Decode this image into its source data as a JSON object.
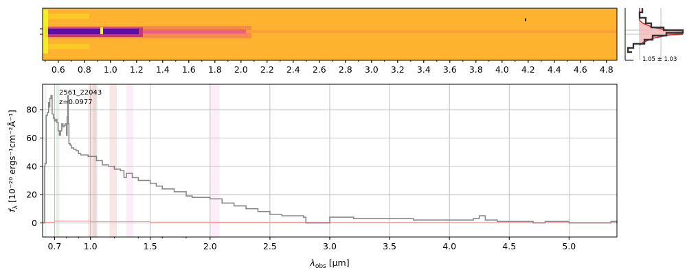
{
  "chart_data": [
    {
      "type": "heatmap",
      "name": "2d-spectrum",
      "x_tick_labels": [
        "0.6",
        "0.8",
        "1.0",
        "1.2",
        "1.4",
        "1.6",
        "1.8",
        "2.0",
        "2.2",
        "2.4",
        "2.6",
        "2.8",
        "3.0",
        "3.2",
        "3.4",
        "3.6",
        "3.8",
        "4.0",
        "4.2",
        "4.4",
        "4.6",
        "4.8"
      ],
      "x_tick_values": [
        0.6,
        0.8,
        1.0,
        1.2,
        1.4,
        1.6,
        1.8,
        2.0,
        2.2,
        2.4,
        2.6,
        2.8,
        3.0,
        3.2,
        3.4,
        3.6,
        3.8,
        4.0,
        4.2,
        4.4,
        4.6,
        4.8
      ],
      "xlim": [
        0.48,
        4.88
      ],
      "colormap": "plasma",
      "colors": {
        "background": "#fdb32f",
        "trace_core": "#5a0ea2",
        "trace_mid": "#c0397f",
        "edge_highlight": "#f0f921"
      }
    },
    {
      "type": "line",
      "name": "spatial-profile",
      "label": "1.05 ± 1.03",
      "colors": {
        "profile": "#333333",
        "model": "#d62728",
        "fill": "#f4b6b6"
      }
    },
    {
      "type": "line",
      "name": "1d-spectrum",
      "annotation_id": "2561_22043",
      "annotation_z": "z=0.0977",
      "xlabel_prefix": "λ",
      "xlabel_sub": "obs",
      "xlabel_suffix": " [μm]",
      "ylabel_f": "f",
      "ylabel_sub": "λ",
      "ylabel_rest": " [10⁻²⁰ ergs⁻¹cm⁻²Å⁻¹]",
      "x_tick_labels": [
        "0.7",
        "1.0",
        "1.5",
        "2.0",
        "2.5",
        "3.0",
        "3.5",
        "4.0",
        "4.5",
        "5.0"
      ],
      "x_tick_values": [
        0.7,
        1.0,
        1.5,
        2.0,
        2.5,
        3.0,
        3.5,
        4.0,
        4.5,
        5.0
      ],
      "y_tick_labels": [
        "0",
        "20",
        "40",
        "60",
        "80"
      ],
      "y_tick_values": [
        0,
        20,
        40,
        60,
        80
      ],
      "xlim": [
        0.6,
        5.4
      ],
      "ylim": [
        -10,
        98
      ],
      "grid": true,
      "bands": [
        {
          "x0": 0.62,
          "x1": 0.63,
          "color": "#2ca02c"
        },
        {
          "x0": 0.71,
          "x1": 0.74,
          "color": "#2ca02c"
        },
        {
          "x0": 0.98,
          "x1": 1.05,
          "color": "#d62728"
        },
        {
          "x0": 1.02,
          "x1": 1.06,
          "color": "#7f7f7f"
        },
        {
          "x0": 1.16,
          "x1": 1.22,
          "color": "#d62728"
        },
        {
          "x0": 1.3,
          "x1": 1.36,
          "color": "#e377c2"
        },
        {
          "x0": 2.0,
          "x1": 2.08,
          "color": "#e377c2"
        }
      ],
      "series": [
        {
          "color": "#888888",
          "x": [
            0.6,
            0.61,
            0.615,
            0.62,
            0.63,
            0.64,
            0.65,
            0.655,
            0.66,
            0.67,
            0.68,
            0.69,
            0.7,
            0.71,
            0.72,
            0.73,
            0.74,
            0.75,
            0.76,
            0.77,
            0.78,
            0.79,
            0.8,
            0.805,
            0.81,
            0.815,
            0.82,
            0.83,
            0.84,
            0.86,
            0.88,
            0.9,
            0.92,
            0.95,
            0.98,
            1.0,
            1.05,
            1.1,
            1.15,
            1.2,
            1.25,
            1.28,
            1.3,
            1.35,
            1.4,
            1.5,
            1.55,
            1.6,
            1.7,
            1.8,
            1.85,
            1.9,
            2.0,
            2.1,
            2.2,
            2.3,
            2.4,
            2.5,
            2.6,
            2.7,
            2.78,
            2.8,
            3.0,
            3.1,
            3.2,
            3.3,
            3.4,
            3.5,
            3.6,
            3.7,
            3.8,
            3.9,
            4.0,
            4.1,
            4.2,
            4.25,
            4.3,
            4.4,
            4.5,
            4.6,
            4.7,
            4.8,
            5.0,
            5.2,
            5.3,
            5.35,
            5.4
          ],
          "y": [
            0,
            0,
            40,
            42,
            76,
            78,
            85,
            82,
            88,
            90,
            77,
            74,
            72,
            73,
            71,
            65,
            62,
            65,
            70,
            68,
            69,
            70,
            62,
            75,
            90,
            70,
            56,
            55,
            53,
            52,
            51,
            49,
            48,
            48,
            47,
            47,
            44,
            41,
            40,
            38,
            37,
            32,
            35,
            32,
            30,
            28,
            26,
            24,
            22,
            19,
            18,
            18,
            17,
            14,
            12,
            10,
            8,
            6,
            5,
            5,
            4,
            0,
            4,
            4,
            3,
            3,
            3,
            3,
            3,
            2,
            2,
            2,
            2,
            2,
            3,
            5,
            2,
            1,
            1,
            1,
            0,
            1,
            0,
            0,
            0,
            1,
            0
          ]
        },
        {
          "color": "#f4a0a0",
          "x": [
            0.6,
            0.7,
            1.0,
            1.5,
            2.0,
            3.0,
            4.0,
            5.0,
            5.4
          ],
          "y": [
            0.4,
            1.2,
            0.9,
            0.5,
            0.4,
            0.3,
            0.2,
            0.2,
            0.2
          ]
        }
      ]
    }
  ]
}
